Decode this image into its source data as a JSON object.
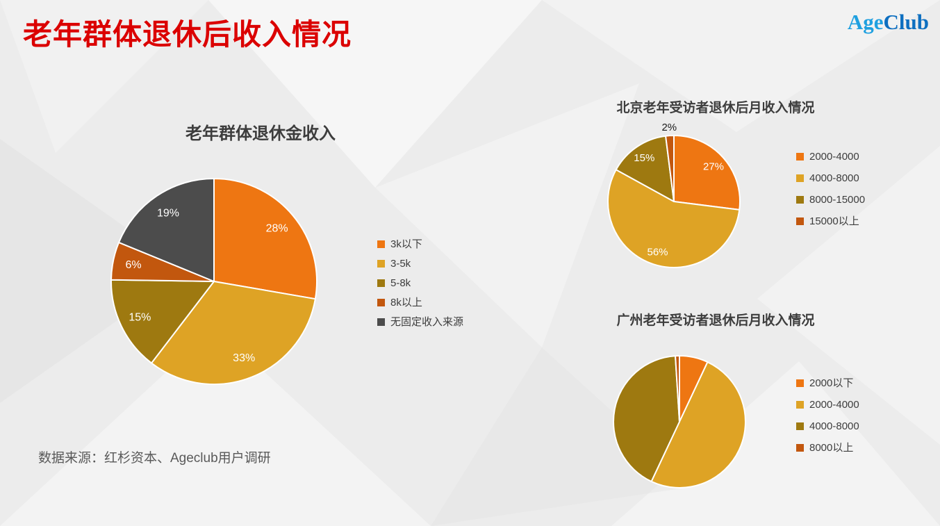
{
  "page": {
    "title": "老年群体退休后收入情况",
    "logo": {
      "age": "Age",
      "club": "Club"
    },
    "source": "数据来源：红杉资本、Ageclub用户调研"
  },
  "colors": {
    "title": "#DB0000",
    "logo_age": "#1FA0E0",
    "logo_club": "#0E6FC0",
    "text": "#3D3D3D",
    "source": "#595959",
    "orange": "#EE7612",
    "gold": "#DEA325",
    "dark_gold": "#9E7910",
    "dark_orange": "#C2570E",
    "dark_gray": "#4C4C4C"
  },
  "chart_data": [
    {
      "type": "pie",
      "title": "老年群体退休金收入",
      "categories": [
        "3k以下",
        "3-5k",
        "5-8k",
        "8k以上",
        "无固定收入来源"
      ],
      "values": [
        28,
        33,
        15,
        6,
        19
      ],
      "unit": "%",
      "data_labels": [
        "28%",
        "33%",
        "15%",
        "6%",
        "19%"
      ],
      "slice_colors": [
        "#EE7612",
        "#DEA325",
        "#9E7910",
        "#C2570E",
        "#4C4C4C"
      ],
      "start_angle": 0,
      "direction": "clockwise",
      "legend_position": "right",
      "show_labels": true
    },
    {
      "type": "pie",
      "title": "北京老年受访者退休后月收入情况",
      "categories": [
        "2000-4000",
        "4000-8000",
        "8000-15000",
        "15000以上"
      ],
      "values": [
        27,
        56,
        15,
        2
      ],
      "unit": "%",
      "data_labels": [
        "27%",
        "56%",
        "15%",
        "2%"
      ],
      "slice_colors": [
        "#EE7612",
        "#DEA325",
        "#9E7910",
        "#C2570E"
      ],
      "start_angle": 0,
      "direction": "clockwise",
      "legend_position": "right",
      "show_labels": true
    },
    {
      "type": "pie",
      "title": "广州老年受访者退休后月收入情况",
      "categories": [
        "2000以下",
        "2000-4000",
        "4000-8000",
        "8000以上"
      ],
      "values": [
        7,
        50,
        42,
        1
      ],
      "unit": "%",
      "data_labels": [
        "",
        "",
        "",
        ""
      ],
      "slice_colors": [
        "#EE7612",
        "#DEA325",
        "#9E7910",
        "#C2570E"
      ],
      "start_angle": 0,
      "direction": "clockwise",
      "legend_position": "right",
      "show_labels": false
    }
  ]
}
